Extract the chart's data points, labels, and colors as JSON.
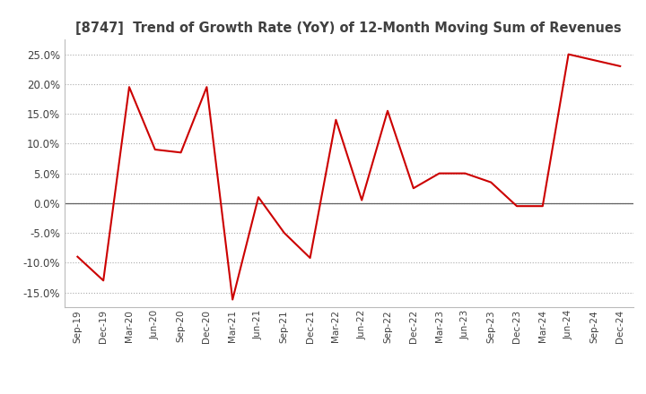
{
  "title": "[8747]  Trend of Growth Rate (YoY) of 12-Month Moving Sum of Revenues",
  "title_color": "#404040",
  "line_color": "#cc0000",
  "background_color": "#ffffff",
  "grid_color": "#aaaaaa",
  "zero_line_color": "#606060",
  "labels": [
    "Sep-19",
    "Dec-19",
    "Mar-20",
    "Jun-20",
    "Sep-20",
    "Dec-20",
    "Mar-21",
    "Jun-21",
    "Sep-21",
    "Dec-21",
    "Mar-22",
    "Jun-22",
    "Sep-22",
    "Dec-22",
    "Mar-23",
    "Jun-23",
    "Sep-23",
    "Dec-23",
    "Mar-24",
    "Jun-24",
    "Sep-24",
    "Dec-24"
  ],
  "values": [
    -9.0,
    -13.0,
    19.5,
    9.0,
    8.5,
    19.5,
    -16.2,
    1.0,
    -5.0,
    -9.2,
    14.0,
    0.5,
    15.5,
    2.5,
    5.0,
    5.0,
    3.5,
    -0.5,
    -0.5,
    25.0,
    24.0,
    23.0
  ],
  "ylim": [
    -17.5,
    27.5
  ],
  "yticks": [
    -15.0,
    -10.0,
    -5.0,
    0.0,
    5.0,
    10.0,
    15.0,
    20.0,
    25.0
  ]
}
